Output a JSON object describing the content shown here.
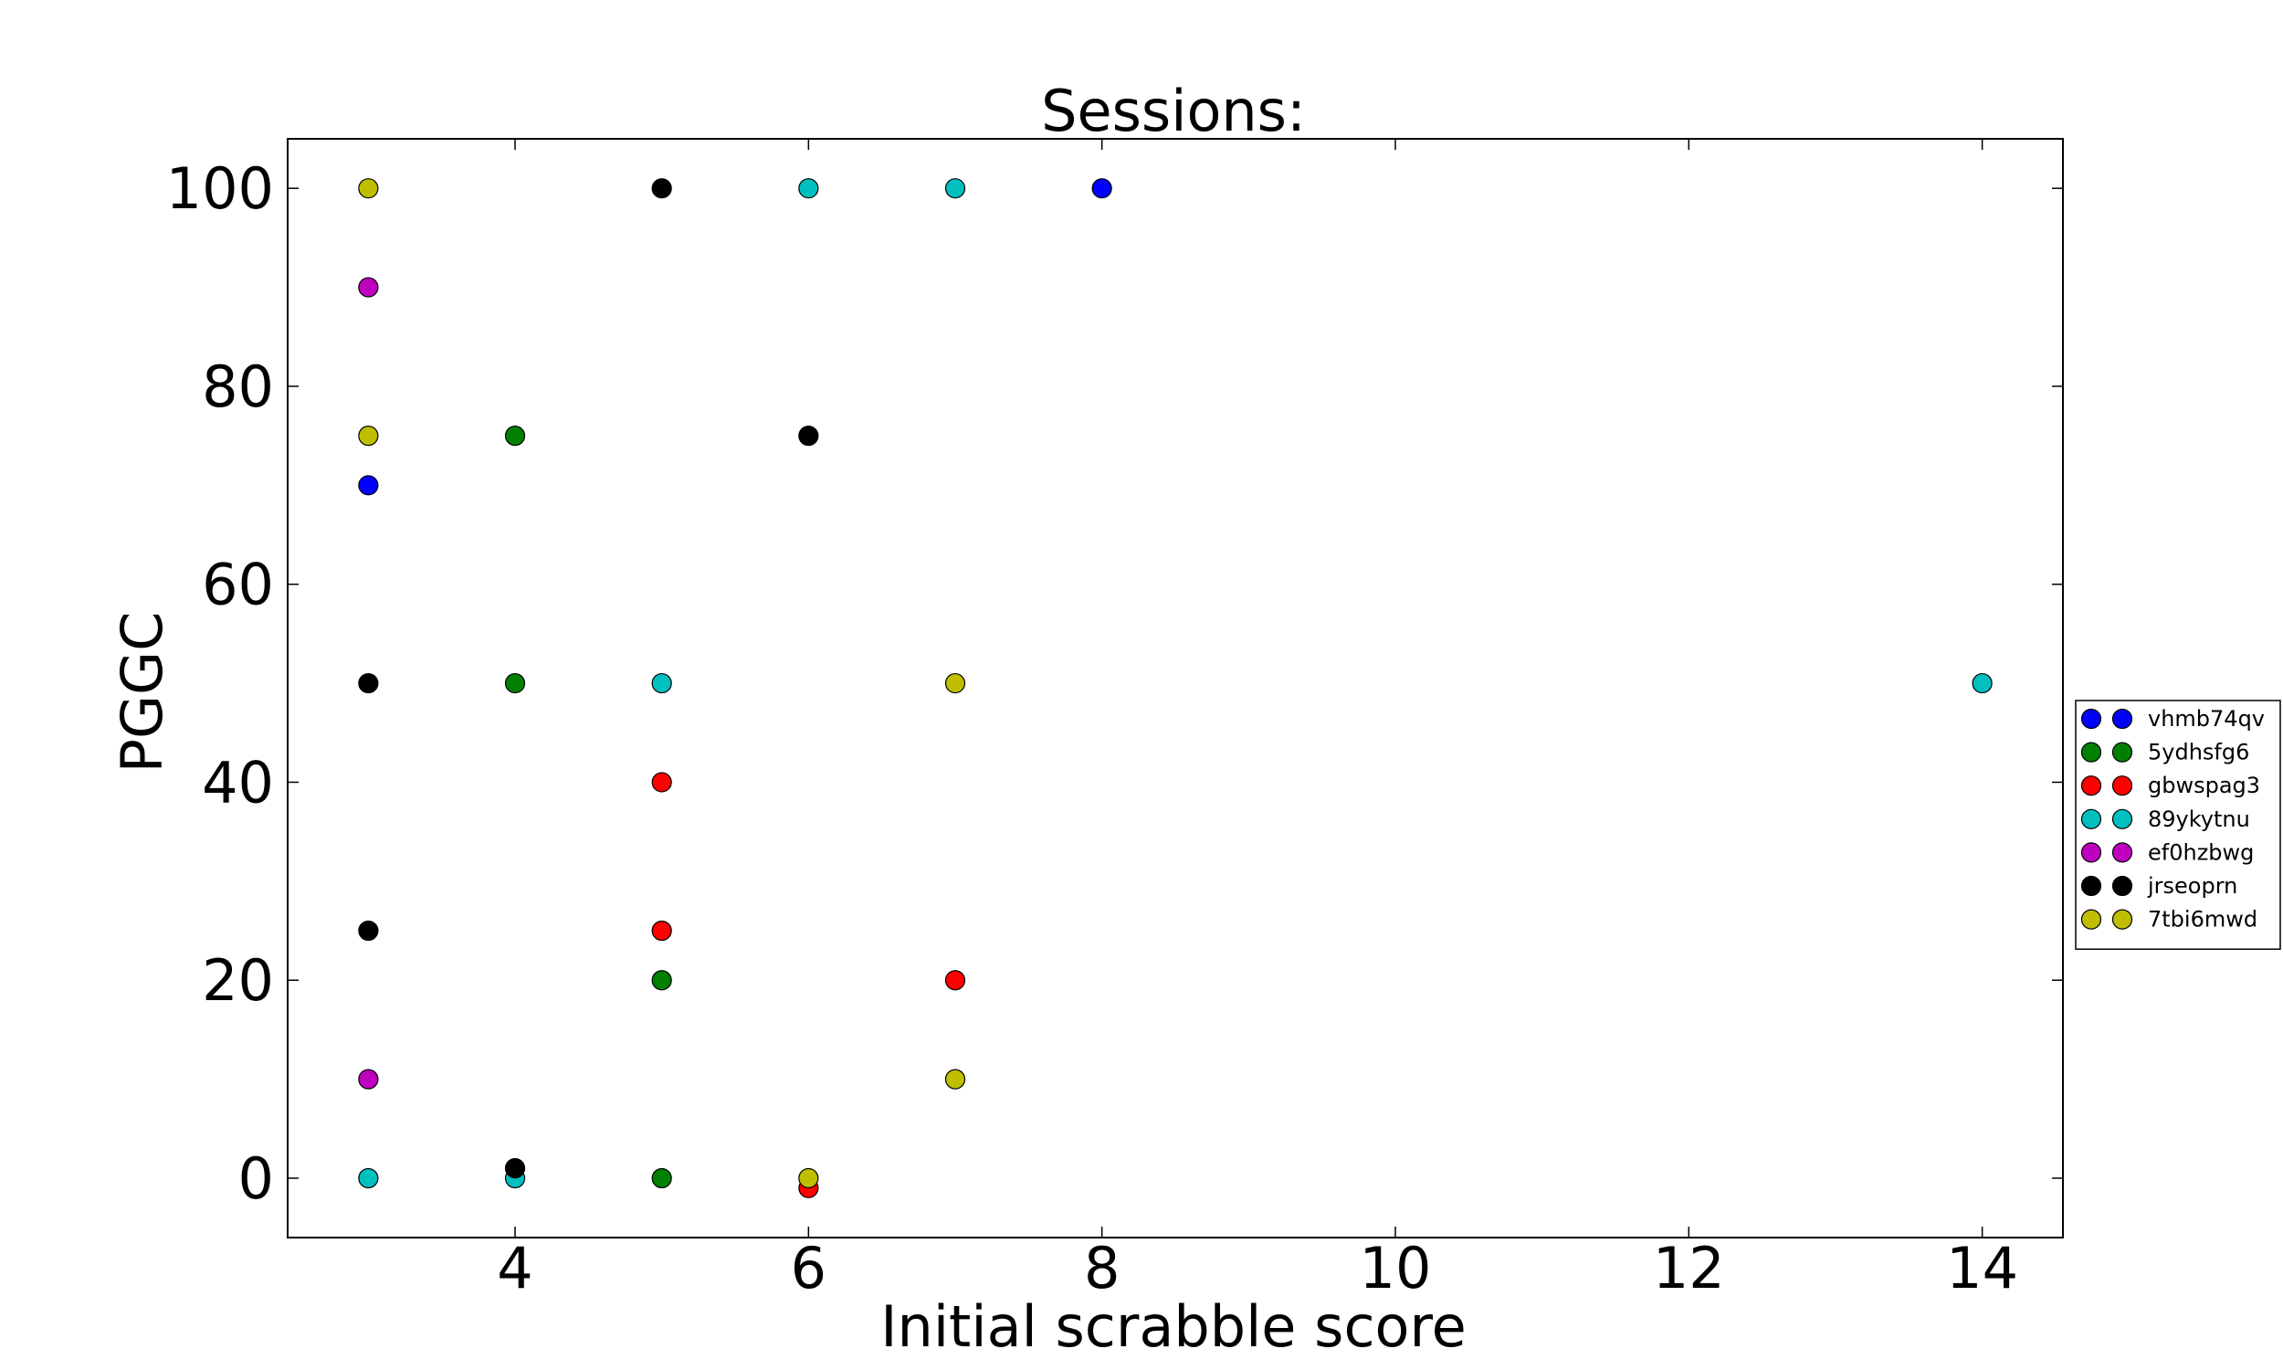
{
  "chart_data": {
    "type": "scatter",
    "title": "Sessions:",
    "xlabel": "Initial scrabble score",
    "ylabel": "PGGC",
    "xlim": [
      2.45,
      14.55
    ],
    "ylim": [
      -6,
      105
    ],
    "xticks": [
      4,
      6,
      8,
      10,
      12,
      14
    ],
    "yticks": [
      0,
      20,
      40,
      60,
      80,
      100
    ],
    "grid": false,
    "legend_position": "right",
    "series": [
      {
        "name": "vhmb74qv",
        "color": "#0000ff",
        "points": [
          [
            3,
            70
          ],
          [
            8,
            100
          ]
        ]
      },
      {
        "name": "5ydhsfg6",
        "color": "#008000",
        "points": [
          [
            4,
            75
          ],
          [
            4,
            50
          ],
          [
            5,
            20
          ],
          [
            5,
            0
          ]
        ]
      },
      {
        "name": "gbwspag3",
        "color": "#ff0000",
        "points": [
          [
            5,
            40
          ],
          [
            5,
            25
          ],
          [
            7,
            20
          ],
          [
            6,
            -1
          ]
        ]
      },
      {
        "name": "89ykytnu",
        "color": "#00bfbf",
        "points": [
          [
            6,
            100
          ],
          [
            7,
            100
          ],
          [
            5,
            50
          ],
          [
            14,
            50
          ],
          [
            3,
            0
          ],
          [
            4,
            0
          ]
        ]
      },
      {
        "name": "ef0hzbwg",
        "color": "#bf00bf",
        "points": [
          [
            3,
            90
          ],
          [
            3,
            10
          ]
        ]
      },
      {
        "name": "jrseoprn",
        "color": "#000000",
        "points": [
          [
            5,
            100
          ],
          [
            6,
            75
          ],
          [
            3,
            50
          ],
          [
            3,
            25
          ],
          [
            4,
            1
          ]
        ]
      },
      {
        "name": "7tbi6mwd",
        "color": "#bfbf00",
        "points": [
          [
            3,
            100
          ],
          [
            3,
            75
          ],
          [
            7,
            50
          ],
          [
            7,
            10
          ],
          [
            6,
            0
          ]
        ]
      }
    ]
  }
}
